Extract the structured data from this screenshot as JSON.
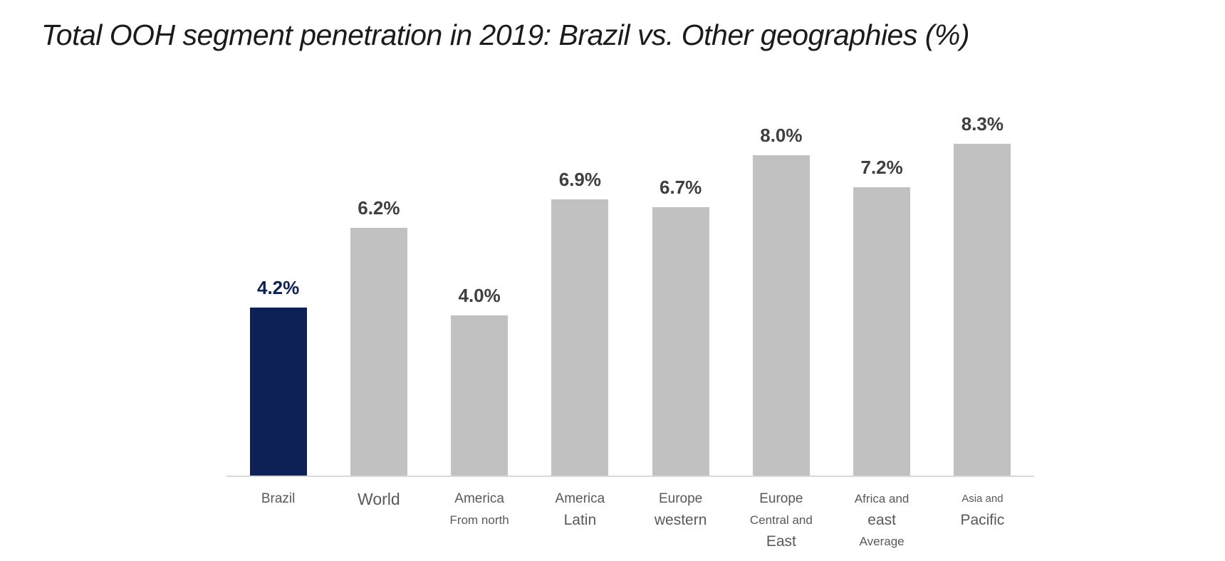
{
  "title": "Total OOH segment penetration in 2019: Brazil vs. Other geographies (%)",
  "chart_data": {
    "type": "bar",
    "title": "Total OOH segment penetration in 2019: Brazil vs. Other geographies (%)",
    "xlabel": "",
    "ylabel": "",
    "ylim": [
      0,
      10
    ],
    "grid": false,
    "legend": "none",
    "unit": "%",
    "highlight_index": 0,
    "values": [
      4.2,
      6.2,
      4.0,
      6.9,
      6.7,
      8.0,
      7.2,
      8.3
    ],
    "labels": [
      "4.2%",
      "6.2%",
      "4.0%",
      "6.9%",
      "6.7%",
      "8.0%",
      "7.2%",
      "8.3%"
    ],
    "categories": [
      {
        "name": "Brazil",
        "lines": [
          {
            "text": "Brazil",
            "size": "m"
          }
        ]
      },
      {
        "name": "World",
        "lines": [
          {
            "text": "World",
            "size": "xl"
          }
        ]
      },
      {
        "name": "America From north",
        "lines": [
          {
            "text": "America",
            "size": "m"
          },
          {
            "text": "From north",
            "size": "s"
          }
        ]
      },
      {
        "name": "America Latin",
        "lines": [
          {
            "text": "America",
            "size": "m"
          },
          {
            "text": "Latin",
            "size": "l"
          }
        ]
      },
      {
        "name": "Europe western",
        "lines": [
          {
            "text": "Europe",
            "size": "m"
          },
          {
            "text": "western",
            "size": "l"
          }
        ]
      },
      {
        "name": "Europe Central and East",
        "lines": [
          {
            "text": "Europe",
            "size": "m"
          },
          {
            "text": "Central and",
            "size": "s"
          },
          {
            "text": "East",
            "size": "l"
          }
        ]
      },
      {
        "name": "Africa and east Average",
        "lines": [
          {
            "text": "Africa and",
            "size": "s"
          },
          {
            "text": "east",
            "size": "l"
          },
          {
            "text": "Average",
            "size": "s"
          }
        ]
      },
      {
        "name": "Asia and Pacific",
        "lines": [
          {
            "text": "Asia and",
            "size": "xs"
          },
          {
            "text": "Pacific",
            "size": "l"
          }
        ]
      }
    ],
    "colors": {
      "bar_highlight": "#0d2157",
      "bar_default": "#c1c1c1",
      "value_label_highlight": "#0d2157",
      "value_label_default": "#3f3f3f",
      "tick_text": "#595959",
      "axis_line": "#d9d9d9",
      "title_text": "#1b1b1b",
      "background": "#ffffff"
    }
  }
}
